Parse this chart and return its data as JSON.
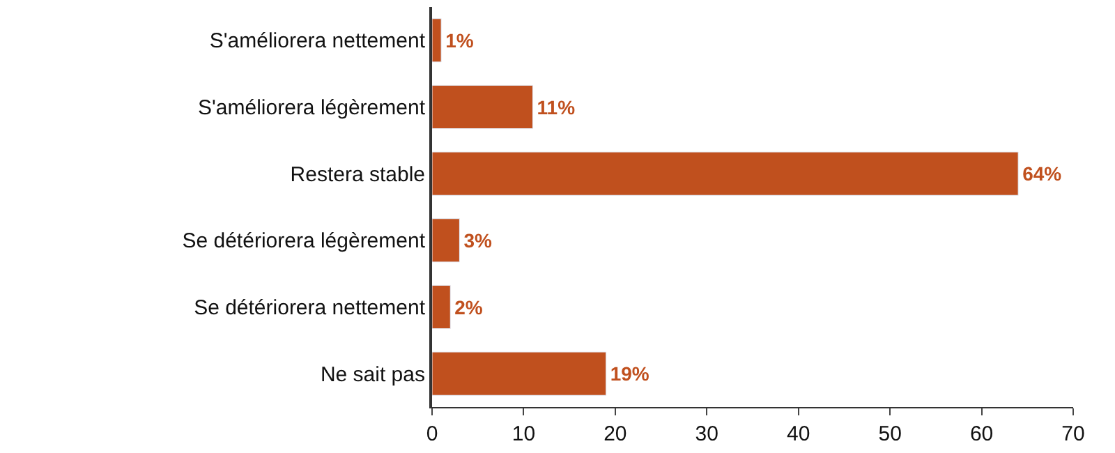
{
  "chart_data": {
    "type": "bar",
    "orientation": "horizontal",
    "categories": [
      "S'améliorera nettement",
      "S'améliorera légèrement",
      "Restera stable",
      "Se détériorera légèrement",
      "Se détériorera nettement",
      "Ne sait pas"
    ],
    "values": [
      1,
      11,
      64,
      3,
      2,
      19
    ],
    "value_labels": [
      "1%",
      "11%",
      "64%",
      "3%",
      "2%",
      "19%"
    ],
    "color": "#c0501e",
    "xlim": [
      0,
      70
    ],
    "xticks": [
      0,
      10,
      20,
      30,
      40,
      50,
      60,
      70
    ],
    "legend": false
  }
}
